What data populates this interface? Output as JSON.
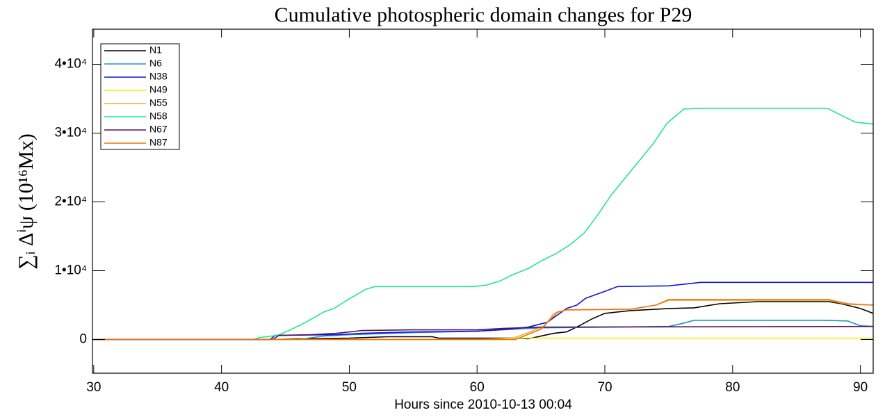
{
  "chart_data": {
    "type": "line",
    "title": "Cumulative photospheric domain changes for P29",
    "x_label": "Hours since 2010-10-13 00:04",
    "y_label": "∑ᵢ Δⁱψ  (10¹⁶Mx)",
    "xlim": [
      29.9,
      91
    ],
    "ylim": [
      -4900,
      45100
    ],
    "xticks": [
      30,
      40,
      50,
      60,
      70,
      80,
      90
    ],
    "yticks": [
      {
        "value": 0,
        "label": "0"
      },
      {
        "value": 10000,
        "label": "1•10⁴"
      },
      {
        "value": 20000,
        "label": "2•10⁴"
      },
      {
        "value": 30000,
        "label": "3•10⁴"
      },
      {
        "value": 40000,
        "label": "4•10⁴"
      }
    ],
    "legend": "upper left",
    "series": [
      {
        "name": "N1",
        "color": "#000000",
        "x": [
          29.9,
          44,
          46,
          50,
          53,
          56.5,
          57,
          63,
          64,
          66,
          67,
          68,
          69,
          70,
          72,
          75,
          77,
          79,
          82,
          87.5,
          88.5,
          90,
          91
        ],
        "values": [
          0,
          0,
          100,
          200,
          400,
          400,
          200,
          200,
          100,
          900,
          1100,
          2000,
          3000,
          3800,
          4200,
          4500,
          4600,
          5200,
          5500,
          5500,
          5200,
          4500,
          3800
        ]
      },
      {
        "name": "N6",
        "color": "#1e8fd0",
        "x": [
          29.9,
          46,
          48,
          50,
          55,
          60,
          63,
          65,
          70,
          75,
          76,
          77,
          87,
          89,
          90,
          91
        ],
        "values": [
          0,
          0,
          500,
          700,
          1000,
          1200,
          1500,
          1700,
          1800,
          1900,
          2300,
          2800,
          2800,
          2700,
          2000,
          1900
        ]
      },
      {
        "name": "N38",
        "color": "#1414d0",
        "x": [
          29.9,
          43.8,
          44.2,
          49,
          51,
          55,
          60,
          62.5,
          64,
          65.5,
          67,
          67.8,
          68.5,
          70,
          71,
          75,
          76.5,
          77.5,
          91
        ],
        "values": [
          0,
          0,
          600,
          700,
          900,
          1100,
          1200,
          1500,
          1800,
          2500,
          4500,
          5000,
          6000,
          7000,
          7700,
          7800,
          8100,
          8300,
          8300
        ]
      },
      {
        "name": "N49",
        "color": "#f0f000",
        "x": [
          29.9,
          60,
          63,
          91
        ],
        "values": [
          0,
          0,
          200,
          200
        ]
      },
      {
        "name": "N55",
        "color": "#f0b020",
        "x": [
          29.9,
          62.5,
          63,
          64,
          65.3,
          66,
          67,
          72,
          74,
          75,
          87.5,
          89,
          91
        ],
        "values": [
          0,
          0,
          300,
          1000,
          2000,
          3800,
          4300,
          4400,
          5000,
          5700,
          5700,
          5100,
          5000
        ]
      },
      {
        "name": "N58",
        "color": "#20e88a",
        "x": [
          29.9,
          42.5,
          43,
          44.4,
          45.5,
          46.6,
          48,
          48.8,
          49.9,
          51.3,
          52,
          59.7,
          60.7,
          61.8,
          62.9,
          64,
          65.1,
          66.2,
          67.3,
          68.4,
          69.4,
          70.5,
          71.6,
          72.7,
          73.8,
          74.9,
          76.2,
          77.6,
          87.4,
          88.5,
          89.6,
          91
        ],
        "values": [
          0,
          0,
          300,
          600,
          1500,
          2500,
          4000,
          4500,
          5800,
          7300,
          7700,
          7700,
          7900,
          8500,
          9500,
          10300,
          11500,
          12500,
          13800,
          15500,
          18000,
          21000,
          23500,
          26000,
          28500,
          31500,
          33500,
          33600,
          33600,
          32600,
          31600,
          31300
        ]
      },
      {
        "name": "N67",
        "color": "#501060",
        "x": [
          29.9,
          44,
          44.5,
          47,
          49,
          51,
          55,
          60,
          62,
          65,
          91
        ],
        "values": [
          0,
          0,
          600,
          700,
          900,
          1300,
          1400,
          1400,
          1600,
          1800,
          1900
        ]
      },
      {
        "name": "N87",
        "color": "#f07010",
        "x": [
          29.9,
          63,
          65,
          66.3,
          67,
          72,
          74,
          75,
          87.5,
          89,
          91
        ],
        "values": [
          0,
          0,
          1500,
          4000,
          4300,
          4400,
          5000,
          5800,
          5800,
          5200,
          5000
        ]
      }
    ]
  }
}
